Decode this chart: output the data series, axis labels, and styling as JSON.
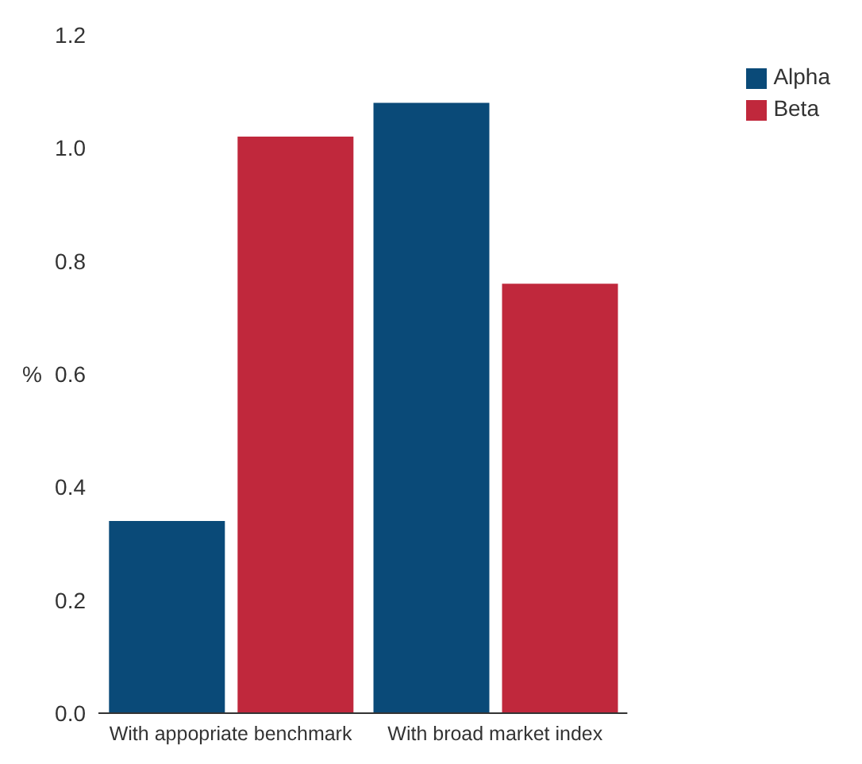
{
  "chart_data": {
    "type": "bar",
    "ylabel": "%",
    "categories": [
      "With appopriate benchmark",
      "With broad market index"
    ],
    "series": [
      {
        "name": "Alpha",
        "color": "#0a4a78",
        "values": [
          0.34,
          1.08
        ]
      },
      {
        "name": "Beta",
        "color": "#c0283c",
        "values": [
          1.02,
          0.76
        ]
      }
    ],
    "ylim": [
      0,
      1.2
    ],
    "yticks": [
      {
        "value": 0,
        "label": "0.0"
      },
      {
        "value": 0.2,
        "label": "0.2"
      },
      {
        "value": 0.4,
        "label": "0.4"
      },
      {
        "value": 0.6,
        "label": "0.6"
      },
      {
        "value": 0.8,
        "label": "0.8"
      },
      {
        "value": 1,
        "label": "1.0"
      },
      {
        "value": 1.2,
        "label": "1.2"
      }
    ],
    "grid": false,
    "legend": "top right"
  }
}
